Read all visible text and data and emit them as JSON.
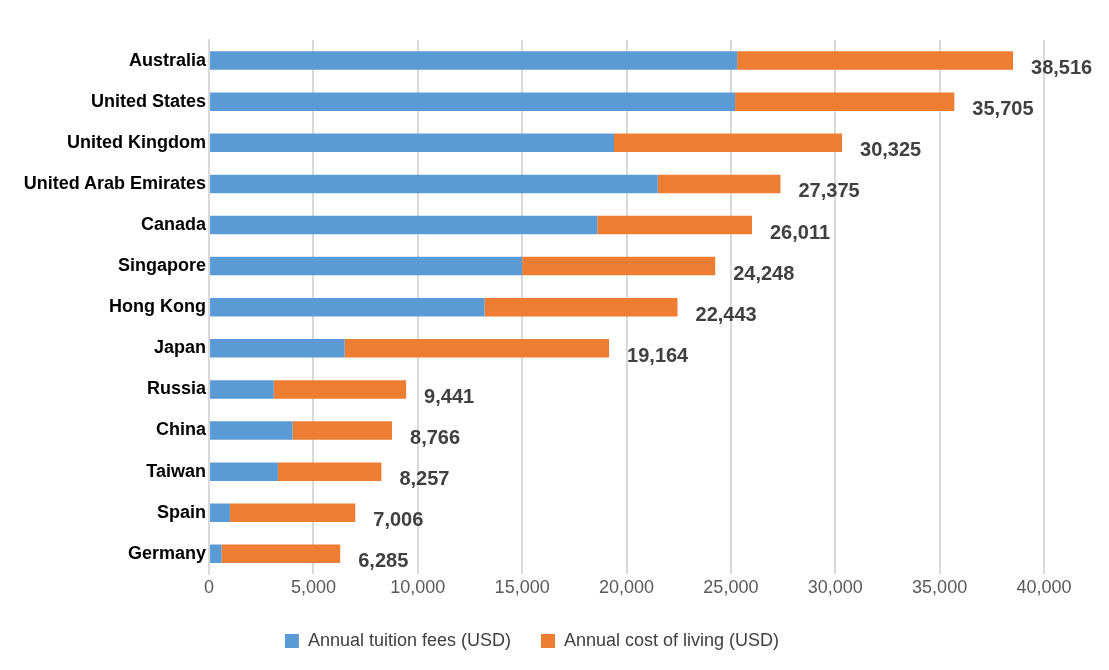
{
  "chart_data": {
    "type": "bar",
    "orientation": "horizontal",
    "stacked": true,
    "categories": [
      "Australia",
      "United States",
      "United Kingdom",
      "United Arab Emirates",
      "Canada",
      "Singapore",
      "Hong Kong",
      "Japan",
      "Russia",
      "China",
      "Taiwan",
      "Spain",
      "Germany"
    ],
    "series": [
      {
        "name": "Annual tuition fees (USD)",
        "color": "#5b9bd5",
        "values": [
          25300,
          25200,
          19400,
          21500,
          18600,
          15000,
          13200,
          6500,
          3100,
          4000,
          3300,
          1000,
          600
        ]
      },
      {
        "name": "Annual cost of living (USD)",
        "color": "#ed7d31",
        "values": [
          13216,
          10505,
          10925,
          5875,
          7411,
          9248,
          9243,
          12664,
          6341,
          4766,
          4957,
          6006,
          5685
        ]
      }
    ],
    "totals": [
      "38,516",
      "35,705",
      "30,325",
      "27,375",
      "26,011",
      "24,248",
      "22,443",
      "19,164",
      "9,441",
      "8,766",
      "8,257",
      "7,006",
      "6,285"
    ],
    "xlim": [
      0,
      40000
    ],
    "xticks": [
      {
        "value": 0,
        "label": "0"
      },
      {
        "value": 5000,
        "label": "5,000"
      },
      {
        "value": 10000,
        "label": "10,000"
      },
      {
        "value": 15000,
        "label": "15,000"
      },
      {
        "value": 20000,
        "label": "20,000"
      },
      {
        "value": 25000,
        "label": "25,000"
      },
      {
        "value": 30000,
        "label": "30,000"
      },
      {
        "value": 35000,
        "label": "35,000"
      },
      {
        "value": 40000,
        "label": "40,000"
      }
    ],
    "grid": "x",
    "legend": "bottom"
  }
}
